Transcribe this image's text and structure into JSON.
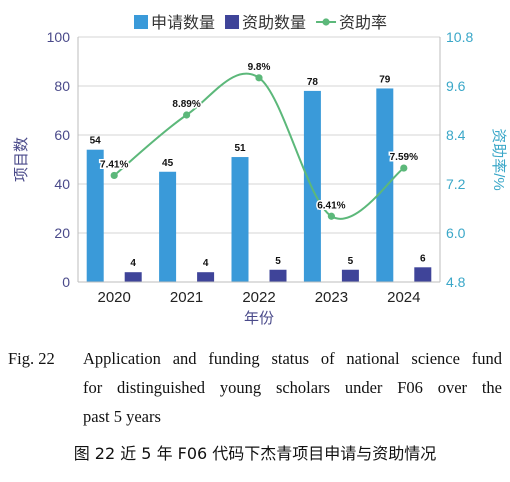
{
  "chart_data": {
    "type": "bar",
    "categories": [
      "2020",
      "2021",
      "2022",
      "2023",
      "2024"
    ],
    "xlabel": "年份",
    "ylabel": "项目数",
    "y2label": "资助率/%",
    "ylim": [
      0,
      100
    ],
    "y2lim": [
      4.8,
      10.8
    ],
    "yticks": [
      "0",
      "20",
      "40",
      "60",
      "80",
      "100"
    ],
    "y2ticks": [
      "4.8",
      "6.0",
      "7.2",
      "8.4",
      "9.6",
      "10.8"
    ],
    "legend_position": "top",
    "series": [
      {
        "name": "申请数量",
        "type": "bar",
        "axis": "left",
        "color": "#3a9ad9",
        "values": [
          54,
          45,
          51,
          78,
          79
        ],
        "labels": [
          "54",
          "45",
          "51",
          "78",
          "79"
        ]
      },
      {
        "name": "资助数量",
        "type": "bar",
        "axis": "left",
        "color": "#3f4499",
        "values": [
          4,
          4,
          5,
          5,
          6
        ],
        "labels": [
          "4",
          "4",
          "5",
          "5",
          "6"
        ]
      },
      {
        "name": "资助率",
        "type": "line",
        "axis": "right",
        "color": "#5cb87a",
        "values": [
          7.41,
          8.89,
          9.8,
          6.41,
          7.59
        ],
        "labels": [
          "7.41%",
          "8.89%",
          "9.8%",
          "6.41%",
          "7.59%"
        ]
      }
    ]
  },
  "caption": {
    "en_fig": "Fig. 22",
    "en_line1": "Application and funding status of national science fund",
    "en_line2": "for distinguished young scholars under F06 over the",
    "en_line3": "past 5 years",
    "zh": "图 22    近 5 年 F06 代码下杰青项目申请与资助情况"
  }
}
